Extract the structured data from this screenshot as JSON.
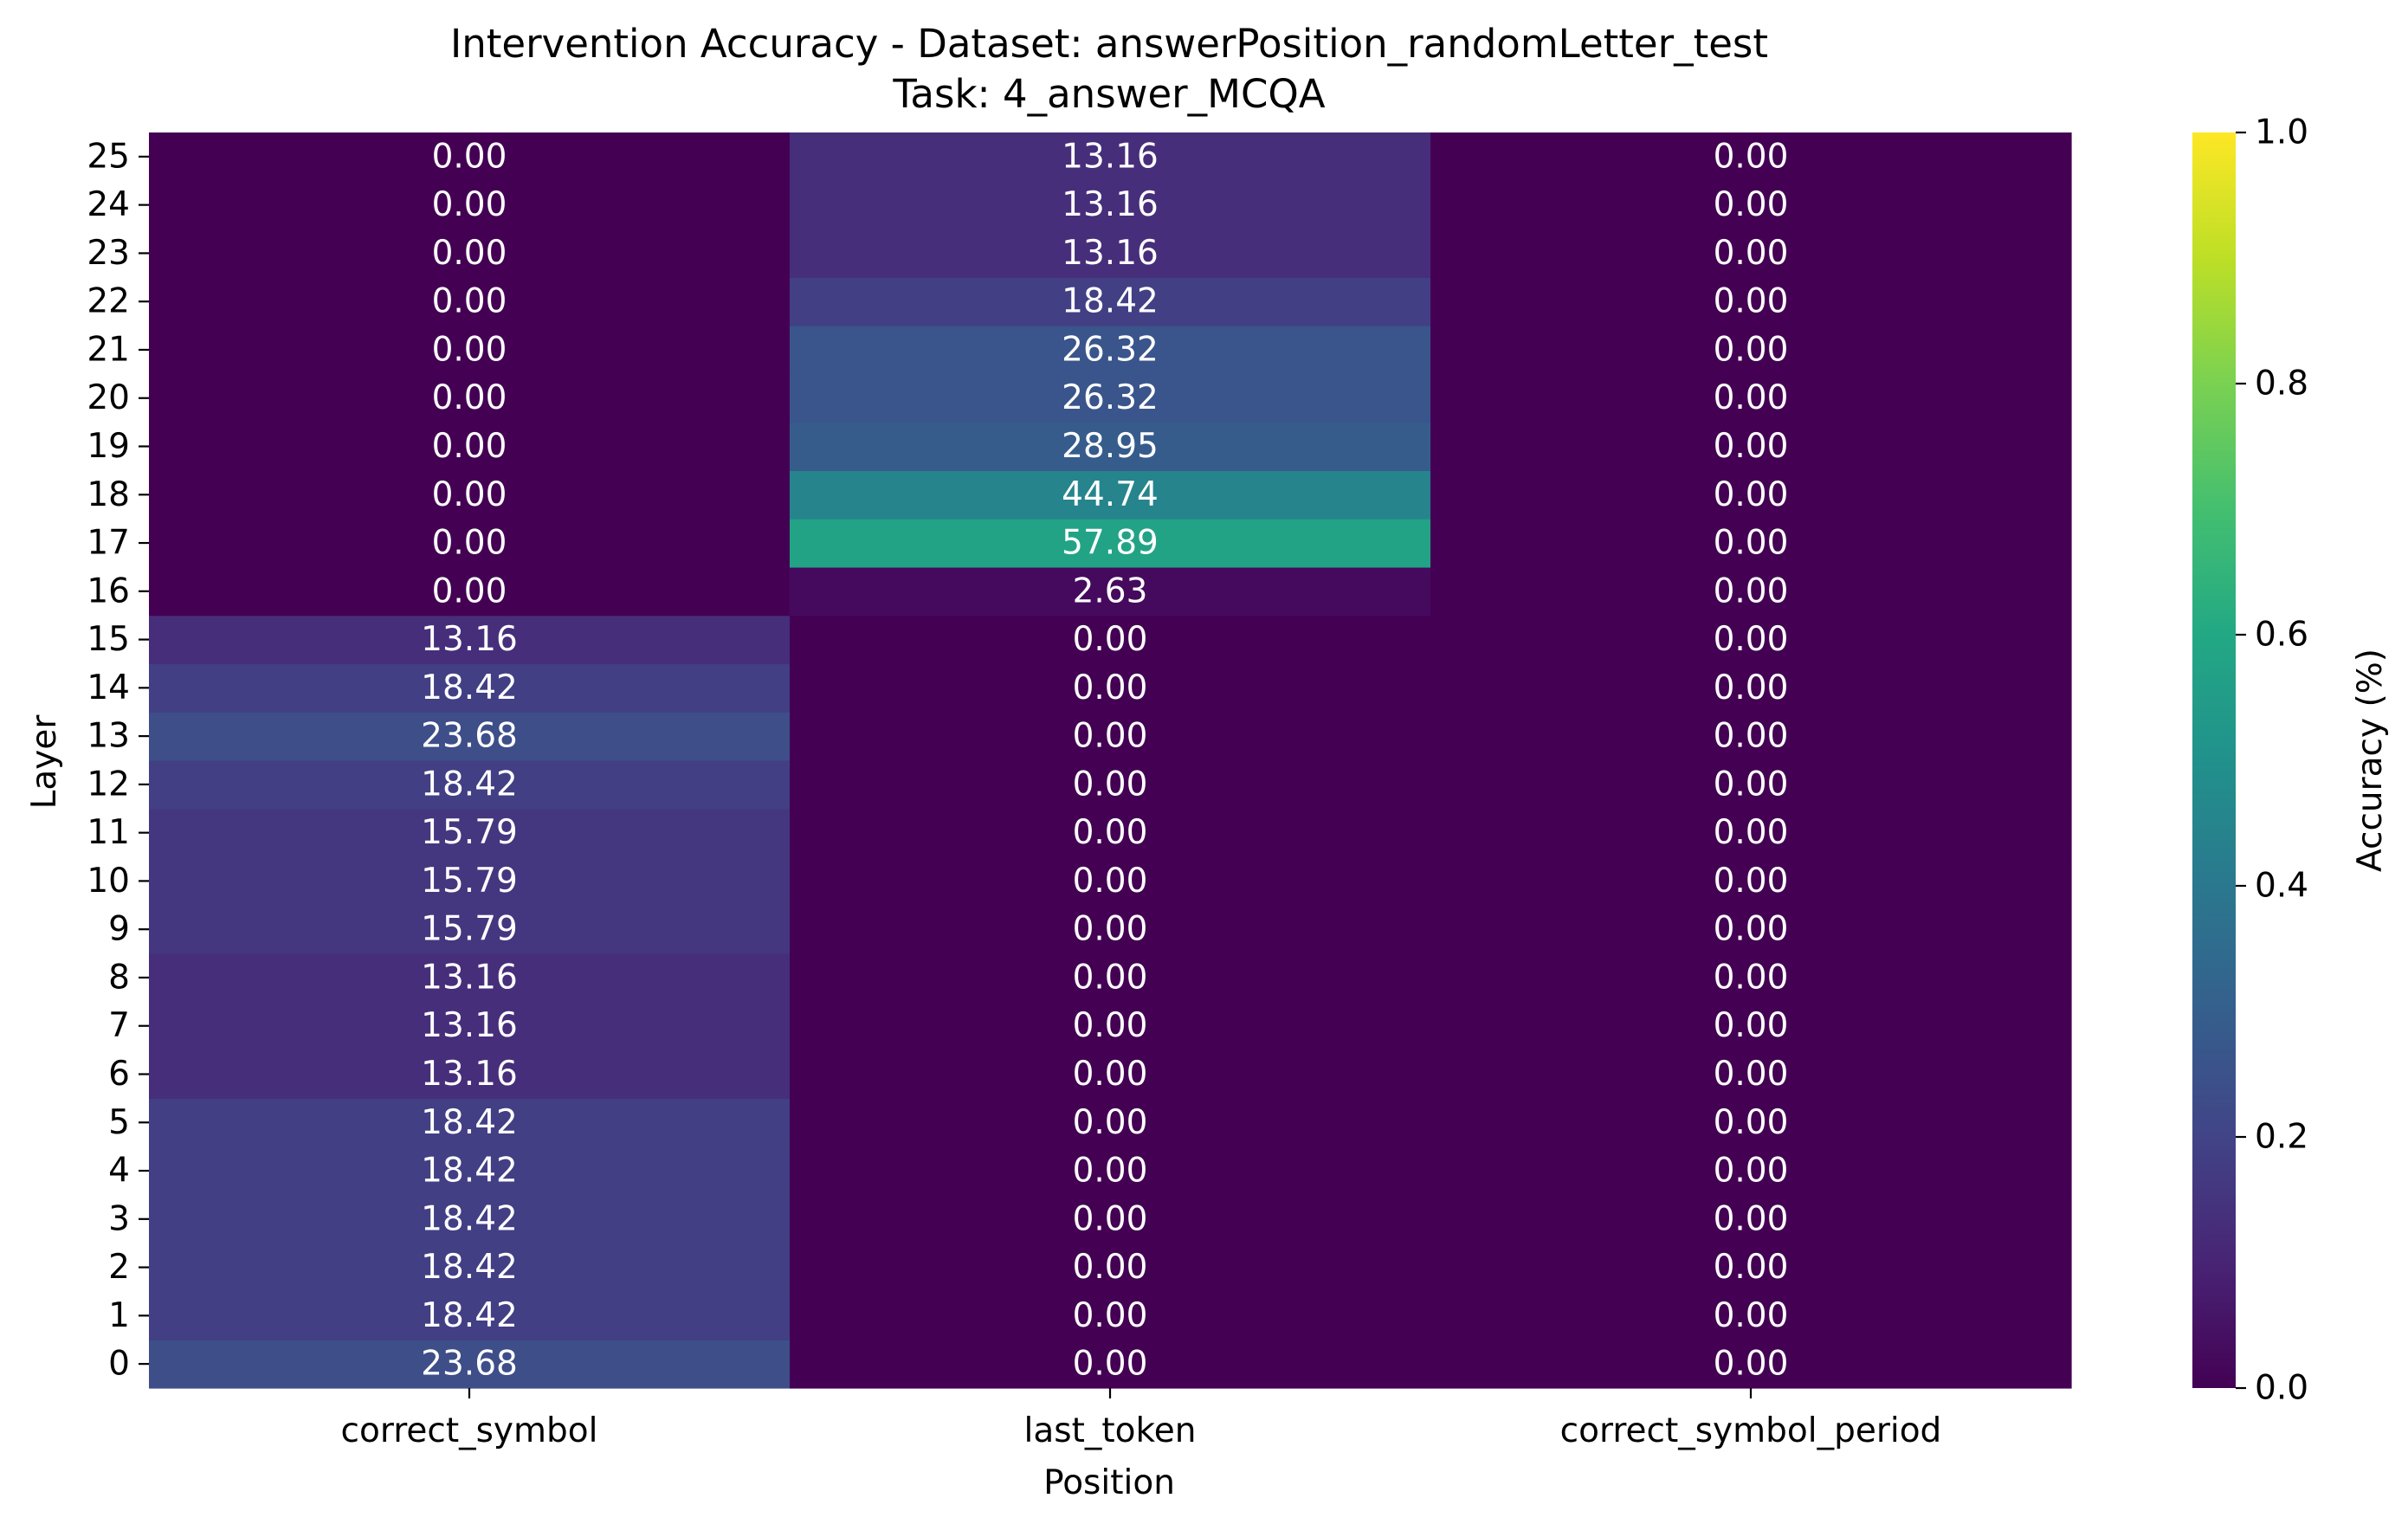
{
  "chart_data": {
    "type": "heatmap",
    "title": "Intervention Accuracy - Dataset: answerPosition_randomLetter_test",
    "subtitle": "Task: 4_answer_MCQA",
    "xlabel": "Position",
    "ylabel": "Layer",
    "colorbar_label": "Accuracy (%)",
    "colormap": "viridis",
    "color_range": [
      0.0,
      1.0
    ],
    "colorbar_ticks": [
      "0.0",
      "0.2",
      "0.4",
      "0.6",
      "0.8",
      "1.0"
    ],
    "columns": [
      "correct_symbol",
      "last_token",
      "correct_symbol_period"
    ],
    "rows": [
      "0",
      "1",
      "2",
      "3",
      "4",
      "5",
      "6",
      "7",
      "8",
      "9",
      "10",
      "11",
      "12",
      "13",
      "14",
      "15",
      "16",
      "17",
      "18",
      "19",
      "20",
      "21",
      "22",
      "23",
      "24",
      "25"
    ],
    "values": [
      [
        23.68,
        0.0,
        0.0
      ],
      [
        18.42,
        0.0,
        0.0
      ],
      [
        18.42,
        0.0,
        0.0
      ],
      [
        18.42,
        0.0,
        0.0
      ],
      [
        18.42,
        0.0,
        0.0
      ],
      [
        18.42,
        0.0,
        0.0
      ],
      [
        13.16,
        0.0,
        0.0
      ],
      [
        13.16,
        0.0,
        0.0
      ],
      [
        13.16,
        0.0,
        0.0
      ],
      [
        15.79,
        0.0,
        0.0
      ],
      [
        15.79,
        0.0,
        0.0
      ],
      [
        15.79,
        0.0,
        0.0
      ],
      [
        18.42,
        0.0,
        0.0
      ],
      [
        23.68,
        0.0,
        0.0
      ],
      [
        18.42,
        0.0,
        0.0
      ],
      [
        13.16,
        0.0,
        0.0
      ],
      [
        0.0,
        2.63,
        0.0
      ],
      [
        0.0,
        57.89,
        0.0
      ],
      [
        0.0,
        44.74,
        0.0
      ],
      [
        0.0,
        28.95,
        0.0
      ],
      [
        0.0,
        26.32,
        0.0
      ],
      [
        0.0,
        26.32,
        0.0
      ],
      [
        0.0,
        18.42,
        0.0
      ],
      [
        0.0,
        13.16,
        0.0
      ],
      [
        0.0,
        13.16,
        0.0
      ],
      [
        0.0,
        13.16,
        0.0
      ]
    ],
    "annotation_format": "two decimals"
  }
}
